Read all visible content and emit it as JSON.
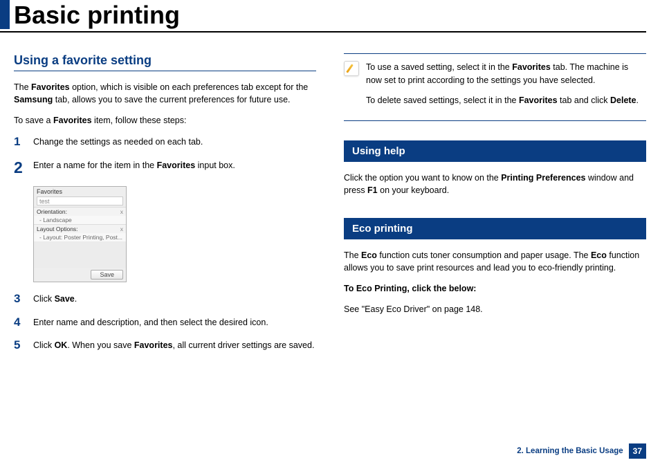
{
  "header": {
    "title": "Basic printing"
  },
  "left": {
    "section_title": "Using a favorite setting",
    "intro": "The <b>Favorites</b> option, which is visible on each preferences tab except for the <b>Samsung</b> tab, allows you to save the current preferences for future use.",
    "intro2": "To save a <b>Favorites</b> item, follow these steps:",
    "steps": [
      {
        "n": "1",
        "html": "Change the settings as needed on each tab."
      },
      {
        "n": "2",
        "html": "Enter a name for the item in the <b>Favorites</b> input box."
      },
      {
        "n": "3",
        "html": "Click <b>Save</b>."
      },
      {
        "n": "4",
        "html": "Enter name and description, and then select the desired icon."
      },
      {
        "n": "5",
        "html": "Click <b>OK</b>. When you save <b>Favorites</b>, all current driver settings are saved."
      }
    ],
    "favbox": {
      "title": "Favorites",
      "input_value": "test",
      "row1": "Orientation:",
      "row1x": "x",
      "sub1": "- Landscape",
      "row2": "Layout Options:",
      "row2x": "x",
      "sub2": "- Layout: Poster Printing, Post...",
      "save": "Save"
    }
  },
  "right": {
    "note_line1": "To use a saved setting, select it in the <b>Favorites</b> tab. The machine is now set to print according to the settings you have selected.",
    "note_line2": "To delete saved settings, select it in the  <b>Favorites</b> tab and click <b>Delete</b>.",
    "help_title": "Using help",
    "help_text": "Click the option you want to know on the <b>Printing Preferences</b> window and press <b>F1</b> on your keyboard.",
    "eco_title": "Eco printing",
    "eco_p1": "The <b>Eco</b> function cuts toner consumption and paper usage. The <b>Eco</b> function allows you to save print resources and lead you to eco-friendly printing.",
    "eco_p2": "<b>To Eco Printing, click the below:</b>",
    "eco_p3": "See \"Easy Eco Driver\" on page 148."
  },
  "footer": {
    "chapter": "2. Learning the Basic Usage",
    "page": "37"
  }
}
